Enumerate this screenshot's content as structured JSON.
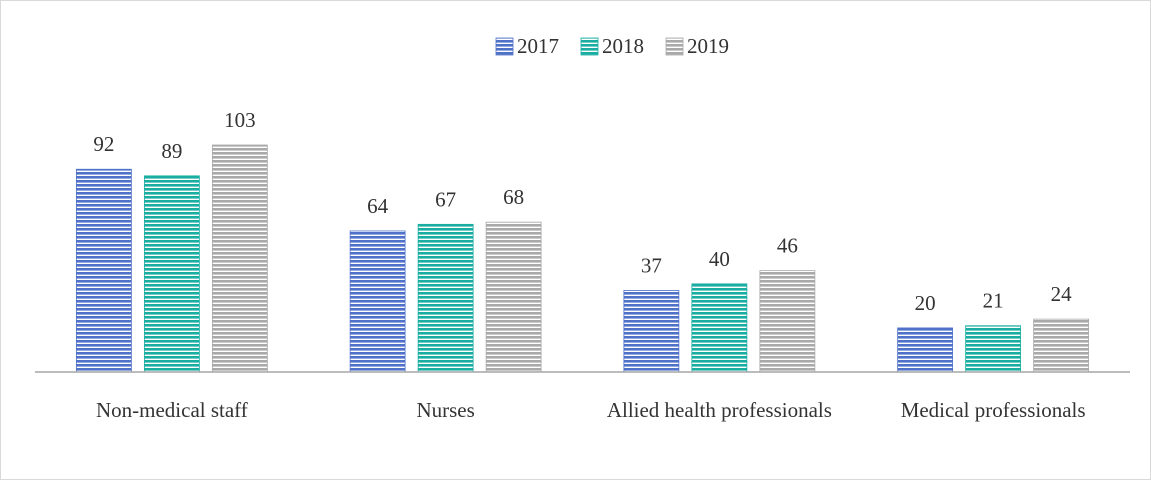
{
  "chart_data": {
    "type": "bar",
    "categories": [
      "Non-medical staff",
      "Nurses",
      "Allied health professionals",
      "Medical professionals"
    ],
    "series": [
      {
        "name": "2017",
        "color": "#4f72c8",
        "values": [
          92,
          64,
          37,
          20
        ]
      },
      {
        "name": "2018",
        "color": "#1aaea2",
        "values": [
          89,
          67,
          40,
          21
        ]
      },
      {
        "name": "2019",
        "color": "#a9a9a9",
        "values": [
          103,
          68,
          46,
          24
        ]
      }
    ],
    "legend": "top"
  }
}
